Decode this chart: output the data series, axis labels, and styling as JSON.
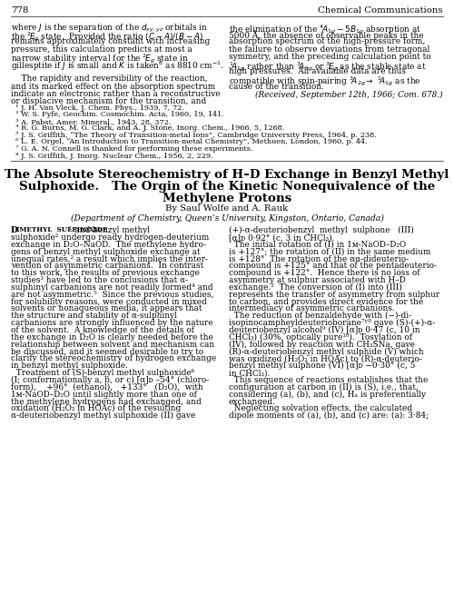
{
  "bg": "#ffffff",
  "page_num": "778",
  "journal": "Chemical Communications",
  "top_left_lines": [
    "where $J$ is the separation of the $d_{xy,yz}$ orbitals in",
    "the $^{2}\\!E_{g}$ state.  Provided the ratio $(C-A)/(B-A)$",
    "remains approximately constant with increasing",
    "pressure, this calculation predicts at most a",
    "narrow stability interval for the $^{2}\\!E_{g}$ state in",
    "gillesptite if $J$ is small and $K$ is taken$^{8}$ as 8810 cm$^{-1}$.",
    "",
    "    The rapidity and reversibility of the reaction,",
    "and its marked effect on the absorption spectrum",
    "indicate an electronic rather than a reconstructive",
    "or displacive mechanism for the transition, and"
  ],
  "top_right_lines": [
    "the elimination of the $^{4}\\!A_{1g} - 5B_{1g}$ absorption at",
    "5000 Å, the absence of observable peaks in the",
    "absorption spectrum of the high-pressure form,",
    "the failure to observe deviations from tetragonal",
    "symmetry, and the preceding calculation point to",
    "$^{1}\\!A_{1g}$ rather than $^{3}\\!A_{1g}$ or $^{3}\\!E_{g}$ as the stable state at",
    "high pressures.  All available data are thus",
    "compatible with spin-pairing $^{3}\\!A_{2g} \\rightarrow$ $^{1}\\!A_{1g}$ as the",
    "cause of the transition."
  ],
  "received_line": "(Received, September 12th, 1966; Com. 678.)",
  "ref_lines": [
    "  ¹ J. H. Van Vleck, J. Chem. Phys., 1939, 7, 72.",
    "  ² W. S. Fyfe, Geochim. Cosmochim. Acta, 1960, 19, 141.",
    "  ³ A. Pabst, Amer. Mineral., 1943, 28, 372.",
    "  ⁴ R. G. Burns, M. G. Clark, and A. J. Stone, Inorg. Chem., 1966, 5, 1268.",
    "  ⁵ J. S. Griffith, “The Theory of Transition-metal Ions”, Cambridge University Press, 1964, p. 238.",
    "  ⁶ L. E. Orgel, “An Introduction to Transition-metal Chemistry”, Methuen, London, 1960, p. 44.",
    "  ⁷ G. A. N. Connell is thanked for performing these experiments.",
    "  ⁸ J. S. Griffith, J. Inorg. Nuclear Chem., 1956, 2, 229."
  ],
  "title_lines": [
    "The Absolute Stereochemistry of H–D Exchange in Benzyl Methyl",
    "Sulphoxide.   The Orgin of the Kinetic Nonequivalence of the",
    "Methylene Protons"
  ],
  "byline": "By Saul Wolfe and A. Rauk",
  "affil": "(Department of Chemistry, Queen’s University, Kingston, Ontario, Canada)",
  "sc_first": "D",
  "sc_rest": "IMETHYL  SULPHOXIDE",
  "sc_after": "¹ and benzyl methyl",
  "body_left_lines": [
    "sulphoxide² undergo ready hydrogen-deuterium",
    "exchange in D₂O–NaOD.  The methylene hydro-",
    "gens of benzyl methyl sulphoxide exchange at",
    "unequal rates,² a result which implies the inter-",
    "vention of asymmetric carbanions.  In contrast",
    "to this work, the results of previous exchange",
    "studies³ have led to the conclusions that α-",
    "sulphinyl carbanions are not readily formed⁴ and",
    "are not asymmetric.⁵  Since the previous studies,",
    "for solubility reasons, were conducted in mixed",
    "solvents or nonaqueous media, it appears that",
    "the structure and stability of α-sulphinyl",
    "carbanions are strongly influenced by the nature",
    "of the solvent.  A knowledge of the details of",
    "the exchange in D₂O is clearly needed before the",
    "relationship between solvent and mechanism can",
    "be discussed, and it seemed desirable to try to",
    "clarify the stereochemistry of hydrogen exchange",
    "in benzyl methyl sulphoxide.",
    "  Treatment of (S)-benzyl methyl sulphoxide⁶",
    "(I; conformationally a, b, or c) [α]ᴅ –54° (chloro-",
    "form),    +96°  (ethanol),   +133°   (D₂O),  with",
    "1ᴍ-NaOD–D₂O until slightly more than one of",
    "the methylene hydrogens had exchanged, and",
    "oxidation (H₂O₂ in HOAc) of the resulting",
    "α-deuteriobenzyl methyl sulphoxide (II) gave"
  ],
  "body_right_lines": [
    "(+)-α-deuteriobenzyl  methyl  sulphone   (III)",
    "[α]ᴅ 0·92° (c, 3 in CHCl₃).",
    "  The initial rotation of (I) in 1ᴍ-NaOD–D₂O",
    "is +127°; the rotation of (II) in the same medium",
    "is +128°  The rotation of the αα-dideuterio-",
    "compound is +125° and that of the pentadeuterio-",
    "compound is +122°.  Hence there is no loss of",
    "asymmetry at sulphur associated with H–D",
    "exchange.²  The conversion of (I) into (III)",
    "represents the transfer of asymmetry from sulphur",
    "to carbon, and provides direct evidence for the",
    "intermediacy of asymmetric carbanions.",
    "  The reduction of benzaldehyde with (−)-di-",
    "isopinocampheyldeuterioborane⁷ʸ⁸ gave (S)-(+)-α-",
    "deuteriobenzyl alcohol⁹ (IV) [α]ᴅ 0·47 (c, 10 in",
    "CHCl₃) (30%, optically pure¹⁰).  Tosylation of",
    "(IV), followed by reaction with CH₃SNa, gave",
    "(R)-α-deuteriobenzyl methyl sulphide (V) which",
    "was oxidized (H₂O₂ in HOAc) to (R)-α-deuterio-",
    "benzyl methyl sulphone (VI) [α]ᴅ −0·30° (c, 5",
    "in CHCl₃).",
    "  This sequence of reactions establishes that the",
    "configuration at carbon in (II) is (S), i.e., that,",
    "considering (a), (b), and (c), Hₐ is preferentially",
    "exchanged.",
    "  Neglecting solvation effects, the calculated",
    "dipole moments of (a), (b), and (c) are: (a): 3·84;"
  ]
}
